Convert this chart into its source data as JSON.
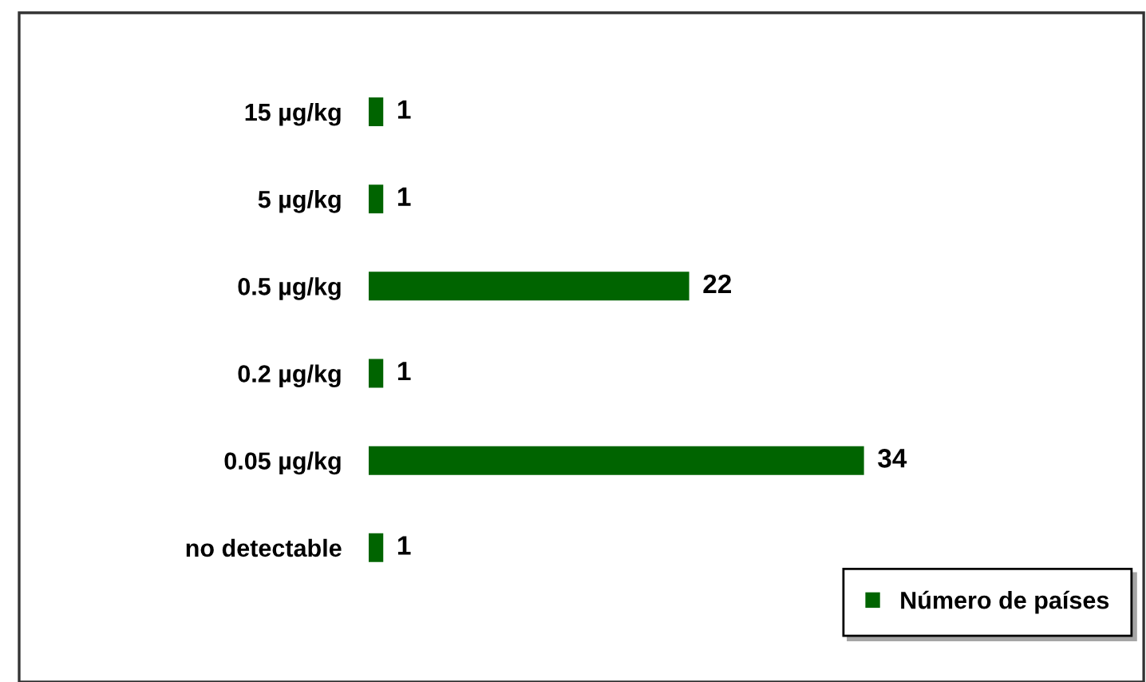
{
  "chart_data": {
    "type": "bar",
    "orientation": "horizontal",
    "categories": [
      "15 µg/kg",
      "5 µg/kg",
      "0.5 µg/kg",
      "0.2 µg/kg",
      "0.05 µg/kg",
      "no detectable"
    ],
    "series": [
      {
        "name": "Número de países",
        "color": "#006400",
        "values": [
          1,
          1,
          22,
          1,
          34,
          1
        ]
      }
    ],
    "data_labels": true,
    "legend": "bottom right",
    "grid": false
  }
}
